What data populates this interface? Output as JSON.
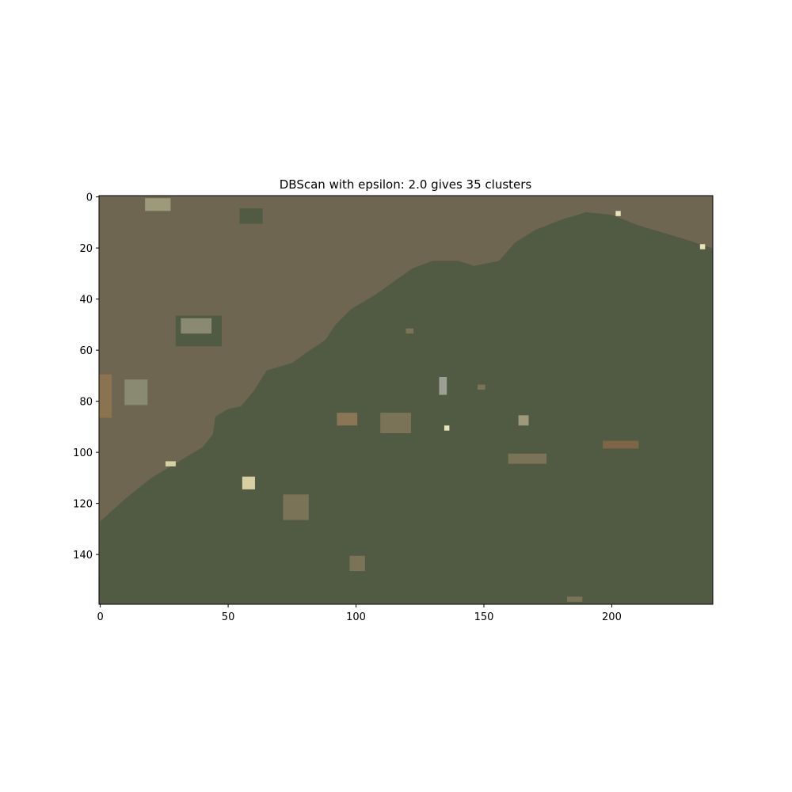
{
  "chart_data": {
    "type": "heatmap",
    "title": "DBScan with epsilon: 2.0 gives 35 clusters",
    "xlabel": "",
    "ylabel": "",
    "image_width": 240,
    "image_height": 160,
    "xlim": [
      -0.5,
      239.5
    ],
    "ylim": [
      159.5,
      -0.5
    ],
    "x_ticks": [
      0,
      50,
      100,
      150,
      200
    ],
    "y_ticks": [
      0,
      20,
      40,
      60,
      80,
      100,
      120,
      140
    ],
    "grid": false,
    "legend": "none",
    "clusters": [
      {
        "name": "land",
        "color": "#6e6650"
      },
      {
        "name": "sea",
        "color": "#515b43"
      }
    ],
    "boundary": [
      [
        0,
        127
      ],
      [
        10,
        118
      ],
      [
        20,
        110
      ],
      [
        30,
        104
      ],
      [
        40,
        98
      ],
      [
        44,
        93
      ],
      [
        45,
        86
      ],
      [
        50,
        83
      ],
      [
        55,
        82
      ],
      [
        60,
        76
      ],
      [
        65,
        68
      ],
      [
        75,
        65
      ],
      [
        82,
        60
      ],
      [
        88,
        56
      ],
      [
        92,
        50
      ],
      [
        98,
        44
      ],
      [
        108,
        38
      ],
      [
        115,
        33
      ],
      [
        122,
        28
      ],
      [
        130,
        25
      ],
      [
        140,
        25
      ],
      [
        146,
        27
      ],
      [
        156,
        25
      ],
      [
        162,
        18
      ],
      [
        170,
        13
      ],
      [
        180,
        9
      ],
      [
        190,
        6
      ],
      [
        200,
        7
      ],
      [
        210,
        11
      ],
      [
        220,
        14
      ],
      [
        230,
        17
      ],
      [
        239,
        20
      ]
    ],
    "speckles": [
      {
        "x": 18,
        "y": 1,
        "w": 10,
        "h": 5,
        "color": "#9d9a7c"
      },
      {
        "x": 55,
        "y": 5,
        "w": 9,
        "h": 6,
        "color": "#515b43"
      },
      {
        "x": 30,
        "y": 47,
        "w": 18,
        "h": 12,
        "color": "#515b43"
      },
      {
        "x": 32,
        "y": 48,
        "w": 12,
        "h": 6,
        "color": "#8a8a72"
      },
      {
        "x": 0,
        "y": 70,
        "w": 5,
        "h": 17,
        "color": "#8c7350"
      },
      {
        "x": 10,
        "y": 72,
        "w": 9,
        "h": 10,
        "color": "#8a8a72"
      },
      {
        "x": 133,
        "y": 71,
        "w": 3,
        "h": 7,
        "color": "#9d9f95"
      },
      {
        "x": 93,
        "y": 85,
        "w": 8,
        "h": 5,
        "color": "#8a7555"
      },
      {
        "x": 110,
        "y": 85,
        "w": 12,
        "h": 8,
        "color": "#7b7358"
      },
      {
        "x": 72,
        "y": 117,
        "w": 10,
        "h": 10,
        "color": "#7b7358"
      },
      {
        "x": 98,
        "y": 141,
        "w": 6,
        "h": 6,
        "color": "#7b7358"
      },
      {
        "x": 160,
        "y": 101,
        "w": 15,
        "h": 4,
        "color": "#7b7358"
      },
      {
        "x": 197,
        "y": 96,
        "w": 14,
        "h": 3,
        "color": "#7e6547"
      },
      {
        "x": 164,
        "y": 86,
        "w": 4,
        "h": 4,
        "color": "#9d9a7c"
      },
      {
        "x": 56,
        "y": 110,
        "w": 5,
        "h": 5,
        "color": "#d7d0a2"
      },
      {
        "x": 26,
        "y": 104,
        "w": 4,
        "h": 2,
        "color": "#d7d0a2"
      },
      {
        "x": 135,
        "y": 90,
        "w": 2,
        "h": 2,
        "color": "#e9e3b9"
      },
      {
        "x": 202,
        "y": 6,
        "w": 2,
        "h": 2,
        "color": "#e9e3b9"
      },
      {
        "x": 235,
        "y": 19,
        "w": 2,
        "h": 2,
        "color": "#e9e3b9"
      },
      {
        "x": 183,
        "y": 157,
        "w": 6,
        "h": 2,
        "color": "#7b7358"
      },
      {
        "x": 120,
        "y": 52,
        "w": 3,
        "h": 2,
        "color": "#7b7358"
      },
      {
        "x": 148,
        "y": 74,
        "w": 3,
        "h": 2,
        "color": "#7b7358"
      }
    ]
  }
}
